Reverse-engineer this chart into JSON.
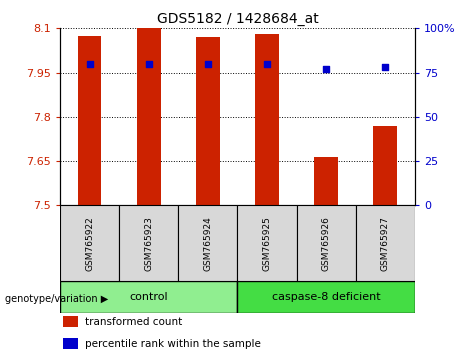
{
  "title": "GDS5182 / 1428684_at",
  "samples": [
    "GSM765922",
    "GSM765923",
    "GSM765924",
    "GSM765925",
    "GSM765926",
    "GSM765927"
  ],
  "red_values": [
    8.075,
    8.1,
    8.07,
    8.08,
    7.665,
    7.77
  ],
  "blue_values": [
    80,
    80,
    80,
    80,
    77,
    78
  ],
  "ylim_left": [
    7.5,
    8.1
  ],
  "ylim_right": [
    0,
    100
  ],
  "yticks_left": [
    7.5,
    7.65,
    7.8,
    7.95,
    8.1
  ],
  "ytick_labels_left": [
    "7.5",
    "7.65",
    "7.8",
    "7.95",
    "8.1"
  ],
  "yticks_right": [
    0,
    25,
    50,
    75,
    100
  ],
  "ytick_labels_right": [
    "0",
    "25",
    "50",
    "75",
    "100%"
  ],
  "groups": [
    {
      "label": "control",
      "indices": [
        0,
        1,
        2
      ],
      "color": "#90EE90"
    },
    {
      "label": "caspase-8 deficient",
      "indices": [
        3,
        4,
        5
      ],
      "color": "#44DD44"
    }
  ],
  "bar_color": "#CC2200",
  "dot_color": "#0000CC",
  "bar_width": 0.4,
  "bar_bottom": 7.5,
  "legend_items": [
    {
      "label": "transformed count",
      "color": "#CC2200"
    },
    {
      "label": "percentile rank within the sample",
      "color": "#0000CC"
    }
  ],
  "grid_color": "black",
  "group_label": "genotype/variation",
  "bg_color": "#d8d8d8",
  "plot_bg": "white"
}
